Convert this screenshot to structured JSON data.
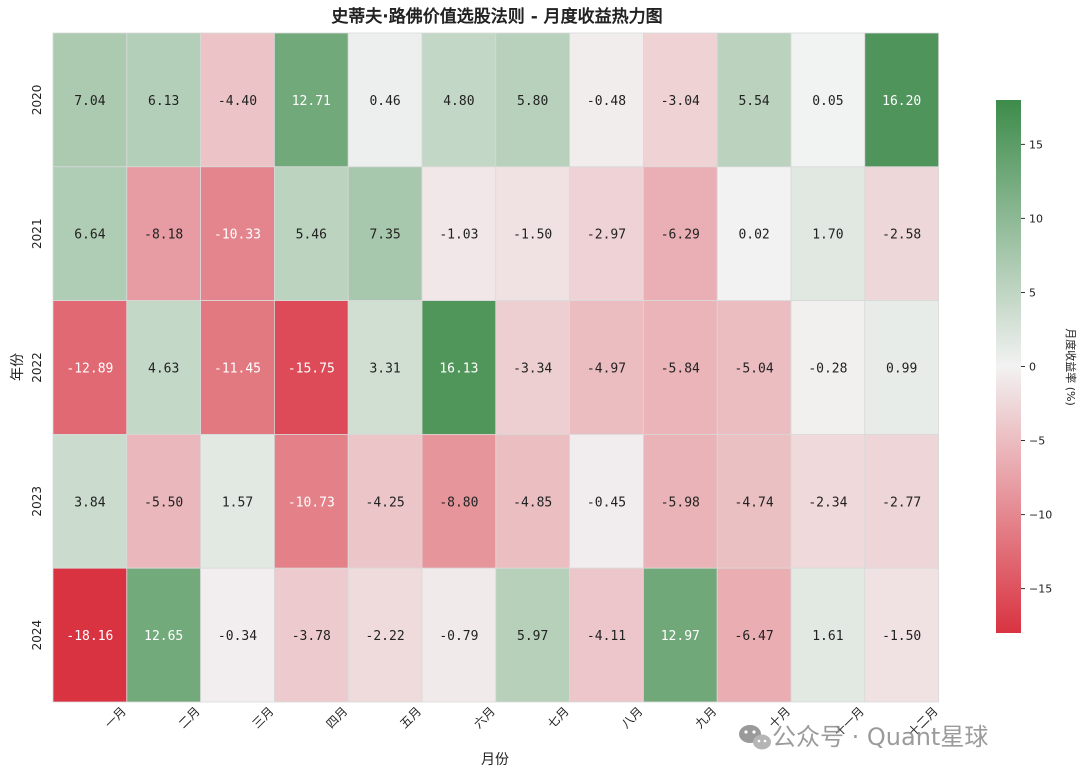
{
  "chart_data": {
    "type": "heatmap",
    "title": "史蒂夫·路佛价值选股法则 - 月度收益热力图",
    "xlabel": "月份",
    "ylabel": "年份",
    "x_categories": [
      "一月",
      "二月",
      "三月",
      "四月",
      "五月",
      "六月",
      "七月",
      "八月",
      "九月",
      "十月",
      "十一月",
      "十二月"
    ],
    "y_categories": [
      "2020",
      "2021",
      "2022",
      "2023",
      "2024"
    ],
    "values": [
      [
        7.04,
        6.13,
        -4.4,
        12.71,
        0.46,
        4.8,
        5.8,
        -0.48,
        -3.04,
        5.54,
        0.05,
        16.2
      ],
      [
        6.64,
        -8.18,
        -10.33,
        5.46,
        7.35,
        -1.03,
        -1.5,
        -2.97,
        -6.29,
        0.02,
        1.7,
        -2.58
      ],
      [
        -12.89,
        4.63,
        -11.45,
        -15.75,
        3.31,
        16.13,
        -3.34,
        -4.97,
        -5.84,
        -5.04,
        -0.28,
        0.99
      ],
      [
        3.84,
        -5.5,
        1.57,
        -10.73,
        -4.25,
        -8.8,
        -4.85,
        -0.45,
        -5.98,
        -4.74,
        -2.34,
        -2.77
      ],
      [
        -18.16,
        12.65,
        -0.34,
        -3.78,
        -2.22,
        -0.79,
        5.97,
        -4.11,
        12.97,
        -6.47,
        1.61,
        -1.5
      ]
    ],
    "colorbar": {
      "label": "月度收益率 (%)",
      "range": [
        -18,
        18
      ],
      "ticks": [
        -15,
        -10,
        -5,
        0,
        5,
        10,
        15
      ],
      "low_color": "#d93341",
      "mid_color": "#f2f2f2",
      "high_color": "#3d8b4a"
    },
    "grid": false,
    "legend": "colorbar-right"
  },
  "watermark": {
    "text": "公众号 · Quant星球",
    "icon": "wechat-icon"
  }
}
